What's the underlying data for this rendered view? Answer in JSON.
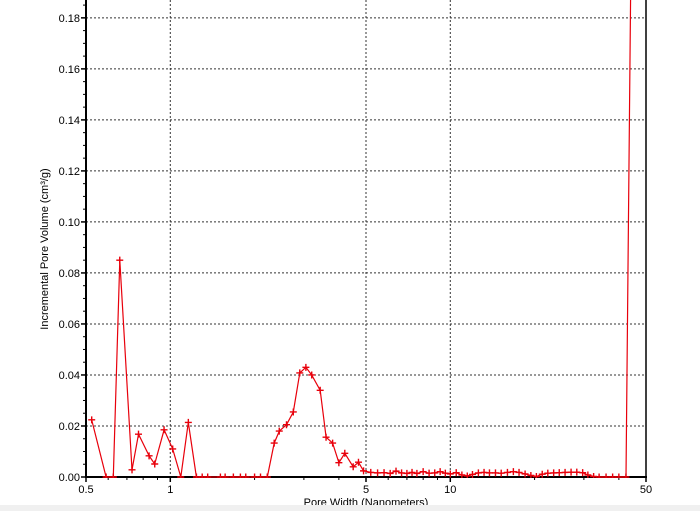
{
  "chart_data": {
    "type": "line",
    "title": "",
    "xlabel": "Pore Width (Nanometers)",
    "ylabel": "Incremental Pore Volume (cm³/g)",
    "x_scale": "log",
    "xlim": [
      0.5,
      50
    ],
    "ylim": [
      0,
      0.187
    ],
    "x_ticks": [
      "0.5",
      "1",
      "5",
      "10",
      "50"
    ],
    "x_tick_values": [
      0.5,
      1,
      5,
      10,
      50
    ],
    "x_gridlines": [
      1,
      5,
      10
    ],
    "y_ticks": [
      "0.00",
      "0.02",
      "0.04",
      "0.06",
      "0.08",
      "0.10",
      "0.12",
      "0.14",
      "0.16",
      "0.18"
    ],
    "y_tick_values": [
      0,
      0.02,
      0.04,
      0.06,
      0.08,
      0.1,
      0.12,
      0.14,
      0.16,
      0.18
    ],
    "grid": true,
    "color": "#e8000b",
    "marker": "plus",
    "series": [
      {
        "x": [
          0.524,
          0.59,
          0.626,
          0.66,
          0.73,
          0.77,
          0.84,
          0.88,
          0.95,
          1.02,
          1.09,
          1.16,
          1.24,
          1.3,
          1.36,
          1.51,
          1.57,
          1.68,
          1.78,
          1.86,
          2.0,
          2.1,
          2.22,
          2.35,
          2.45,
          2.6,
          2.75,
          2.9,
          3.05,
          3.2,
          3.43,
          3.6,
          3.8,
          4.0,
          4.2,
          4.5,
          4.7,
          4.9,
          5.2,
          5.5,
          5.8,
          6.1,
          6.4,
          6.7,
          7.0,
          7.3,
          7.6,
          8.0,
          8.4,
          8.8,
          9.2,
          9.6,
          10.0,
          10.5,
          11,
          11.5,
          12,
          12.6,
          13.2,
          13.8,
          14.5,
          15.2,
          16,
          16.8,
          17.6,
          18.5,
          19.4,
          20.3,
          21.3,
          22.3,
          23.4,
          24.5,
          25.7,
          27,
          28.3,
          29.7,
          31,
          32.5,
          34,
          36,
          38,
          40,
          42.4,
          44.6
        ],
        "y": [
          0.0224,
          0,
          0,
          0.085,
          0.0028,
          0.0168,
          0.0083,
          0.0051,
          0.0185,
          0.011,
          0,
          0.0214,
          0,
          0,
          0,
          0,
          0,
          0,
          0,
          0,
          0,
          0,
          0,
          0.0133,
          0.018,
          0.0205,
          0.0255,
          0.0408,
          0.043,
          0.04,
          0.034,
          0.0156,
          0.0133,
          0.0056,
          0.0093,
          0.004,
          0.0058,
          0.0024,
          0.0018,
          0.0016,
          0.0017,
          0.0014,
          0.0023,
          0.0016,
          0.0014,
          0.0018,
          0.0014,
          0.0021,
          0.0015,
          0.0016,
          0.0021,
          0.0015,
          0.0012,
          0.0017,
          0.0008,
          0.0004,
          0.001,
          0.0016,
          0.0018,
          0.0016,
          0.0016,
          0.0015,
          0.0018,
          0.0021,
          0.0018,
          0.0012,
          0.0006,
          0.0002,
          0.0011,
          0.0015,
          0.0016,
          0.0017,
          0.0018,
          0.0019,
          0.0019,
          0.0017,
          0.0008,
          0.0002,
          0,
          0,
          0,
          0,
          0,
          0.25
        ]
      }
    ]
  }
}
